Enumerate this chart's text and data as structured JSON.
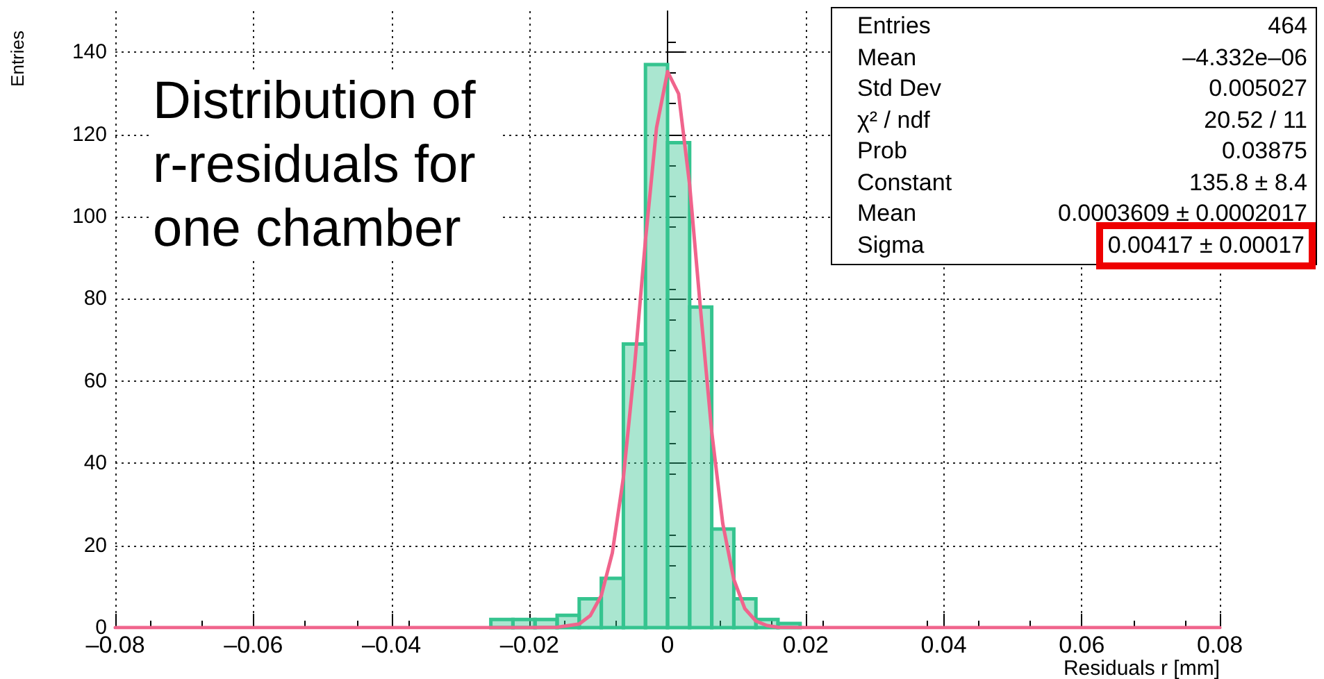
{
  "chart_data": {
    "type": "histogram",
    "xlabel": "Residuals r [mm]",
    "ylabel": "Entries",
    "annotations": [
      "Distribution of r-residuals for one chamber",
      "Entries",
      "464",
      "Mean",
      "–4.332e–06",
      "Std Dev",
      "0.005027",
      "χ² / ndf",
      "20.52 / 11",
      "Prob",
      "0.03875",
      "Constant",
      "135.8 ± 8.4",
      "Mean",
      "0.0003609 ± 0.0002017",
      "Sigma",
      "0.00417 ± 0.00017"
    ],
    "series": [
      {
        "color": "#35c48f",
        "bins": [
          -0.0256,
          -0.0224,
          -0.0192,
          -0.016,
          -0.0128,
          -0.0096,
          -0.0064,
          -0.0032,
          0,
          0.0032,
          0.0064,
          0.0096,
          0.0128,
          0.016,
          0.0192
        ],
        "values": [
          2,
          2,
          2,
          3,
          7,
          12,
          69,
          137,
          118,
          78,
          24,
          7,
          2,
          1
        ]
      },
      {
        "type": "line",
        "color": "#f0648c",
        "x": [
          -0.08,
          -0.02,
          -0.016,
          -0.0128,
          -0.0112,
          -0.0096,
          -0.008,
          -0.0064,
          -0.0048,
          -0.0032,
          -0.0016,
          0,
          0.0016,
          0.0032,
          0.0048,
          0.0064,
          0.008,
          0.0096,
          0.0112,
          0.0128,
          0.0144,
          0.016,
          0.02,
          0.08
        ],
        "values": [
          0,
          0,
          0.1,
          0.9,
          2.9,
          7.8,
          18.2,
          36.5,
          63.2,
          94.3,
          121.6,
          135.3,
          129.9,
          107.7,
          77.0,
          47.6,
          25.3,
          11.7,
          4.6,
          1.6,
          0.5,
          0.1,
          0,
          0
        ]
      }
    ],
    "xlim": [
      -0.08,
      0.08
    ],
    "xticks": [
      {
        "value": -0.08,
        "label": "–0.08"
      },
      {
        "value": -0.06,
        "label": "–0.06"
      },
      {
        "value": -0.04,
        "label": "–0.04"
      },
      {
        "value": -0.02,
        "label": "–0.02"
      },
      0,
      0.02,
      0.04,
      0.06,
      0.08
    ],
    "ylim": [
      0,
      150
    ],
    "yticks": [
      0,
      20,
      40,
      60,
      80,
      100,
      120,
      140
    ],
    "grid": true,
    "marker": "none",
    "line_style": "solid"
  }
}
